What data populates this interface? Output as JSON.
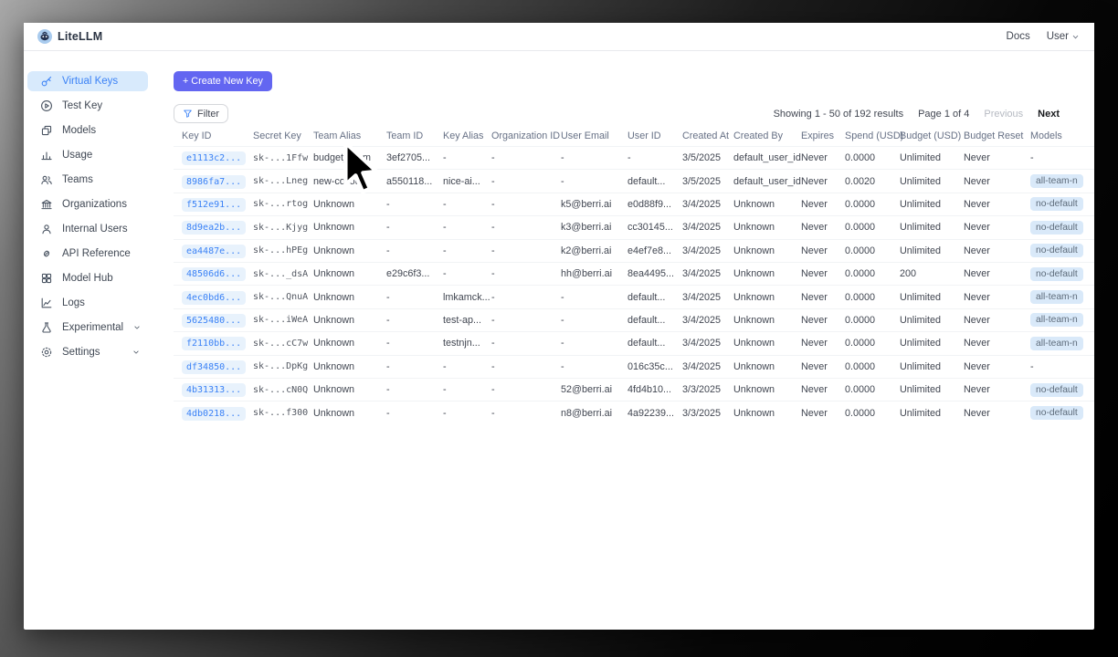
{
  "topbar": {
    "brand": "LiteLLM",
    "docs_label": "Docs",
    "user_label": "User"
  },
  "sidebar": {
    "items": [
      {
        "label": "Virtual Keys",
        "icon": "key-icon",
        "selected": true,
        "expandable": false
      },
      {
        "label": "Test Key",
        "icon": "play-circle-icon",
        "selected": false,
        "expandable": false
      },
      {
        "label": "Models",
        "icon": "models-icon",
        "selected": false,
        "expandable": false
      },
      {
        "label": "Usage",
        "icon": "bar-chart-icon",
        "selected": false,
        "expandable": false
      },
      {
        "label": "Teams",
        "icon": "teams-icon",
        "selected": false,
        "expandable": false
      },
      {
        "label": "Organizations",
        "icon": "bank-icon",
        "selected": false,
        "expandable": false
      },
      {
        "label": "Internal Users",
        "icon": "user-icon",
        "selected": false,
        "expandable": false
      },
      {
        "label": "API Reference",
        "icon": "link-icon",
        "selected": false,
        "expandable": false
      },
      {
        "label": "Model Hub",
        "icon": "grid-icon",
        "selected": false,
        "expandable": false
      },
      {
        "label": "Logs",
        "icon": "line-chart-icon",
        "selected": false,
        "expandable": false
      },
      {
        "label": "Experimental",
        "icon": "flask-icon",
        "selected": false,
        "expandable": true
      },
      {
        "label": "Settings",
        "icon": "gear-icon",
        "selected": false,
        "expandable": true
      }
    ]
  },
  "toolbar": {
    "create_key_label": "+ Create New Key",
    "filter_label": "Filter"
  },
  "pagination": {
    "showing": "Showing 1 - 50 of 192 results",
    "page": "Page 1 of 4",
    "previous_label": "Previous",
    "next_label": "Next"
  },
  "table": {
    "headers": [
      "Key ID",
      "Secret Key",
      "Team Alias",
      "Team ID",
      "Key Alias",
      "Organization ID",
      "User Email",
      "User ID",
      "Created At",
      "Created By",
      "Expires",
      "Spend (USD)",
      "Budget (USD)",
      "Budget Reset",
      "Models"
    ],
    "rows": [
      [
        "e1113c2...",
        "sk-...1Ffw",
        "budget_team",
        "3ef2705...",
        "-",
        "-",
        "-",
        "-",
        "3/5/2025",
        "default_user_id",
        "Never",
        "0.0000",
        "Unlimited",
        "Never",
        "-"
      ],
      [
        "8986fa7...",
        "sk-...Lneg",
        "new-collou...",
        "a550118...",
        "nice-ai...",
        "-",
        "-",
        "default...",
        "3/5/2025",
        "default_user_id",
        "Never",
        "0.0020",
        "Unlimited",
        "Never",
        "all-team-n"
      ],
      [
        "f512e91...",
        "sk-...rtog",
        "Unknown",
        "-",
        "-",
        "-",
        "k5@berri.ai",
        "e0d88f9...",
        "3/4/2025",
        "Unknown",
        "Never",
        "0.0000",
        "Unlimited",
        "Never",
        "no-default"
      ],
      [
        "8d9ea2b...",
        "sk-...Kjyg",
        "Unknown",
        "-",
        "-",
        "-",
        "k3@berri.ai",
        "cc30145...",
        "3/4/2025",
        "Unknown",
        "Never",
        "0.0000",
        "Unlimited",
        "Never",
        "no-default"
      ],
      [
        "ea4487e...",
        "sk-...hPEg",
        "Unknown",
        "-",
        "-",
        "-",
        "k2@berri.ai",
        "e4ef7e8...",
        "3/4/2025",
        "Unknown",
        "Never",
        "0.0000",
        "Unlimited",
        "Never",
        "no-default"
      ],
      [
        "48506d6...",
        "sk-..._dsA",
        "Unknown",
        "e29c6f3...",
        "-",
        "-",
        "hh@berri.ai",
        "8ea4495...",
        "3/4/2025",
        "Unknown",
        "Never",
        "0.0000",
        "200",
        "Never",
        "no-default"
      ],
      [
        "4ec0bd6...",
        "sk-...QnuA",
        "Unknown",
        "-",
        "lmkamck...",
        "-",
        "-",
        "default...",
        "3/4/2025",
        "Unknown",
        "Never",
        "0.0000",
        "Unlimited",
        "Never",
        "all-team-n"
      ],
      [
        "5625480...",
        "sk-...iWeA",
        "Unknown",
        "-",
        "test-ap...",
        "-",
        "-",
        "default...",
        "3/4/2025",
        "Unknown",
        "Never",
        "0.0000",
        "Unlimited",
        "Never",
        "all-team-n"
      ],
      [
        "f2110bb...",
        "sk-...cC7w",
        "Unknown",
        "-",
        "testnjn...",
        "-",
        "-",
        "default...",
        "3/4/2025",
        "Unknown",
        "Never",
        "0.0000",
        "Unlimited",
        "Never",
        "all-team-n"
      ],
      [
        "df34850...",
        "sk-...DpKg",
        "Unknown",
        "-",
        "-",
        "-",
        "-",
        "016c35c...",
        "3/4/2025",
        "Unknown",
        "Never",
        "0.0000",
        "Unlimited",
        "Never",
        "-"
      ],
      [
        "4b31313...",
        "sk-...cN0Q",
        "Unknown",
        "-",
        "-",
        "-",
        "52@berri.ai",
        "4fd4b10...",
        "3/3/2025",
        "Unknown",
        "Never",
        "0.0000",
        "Unlimited",
        "Never",
        "no-default"
      ],
      [
        "4db0218...",
        "sk-...f300",
        "Unknown",
        "-",
        "-",
        "-",
        "n8@berri.ai",
        "4a92239...",
        "3/3/2025",
        "Unknown",
        "Never",
        "0.0000",
        "Unlimited",
        "Never",
        "no-default"
      ]
    ]
  },
  "colors": {
    "accent": "#6366f1",
    "link_blue": "#3b82f6",
    "selected_nav_bg": "#d8eafc",
    "key_pill_bg": "#e8f2fc",
    "badge_bg": "#d9e9f9"
  }
}
